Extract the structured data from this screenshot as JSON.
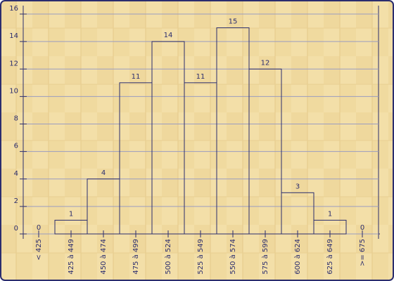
{
  "chart_data": {
    "type": "bar",
    "categories": [
      "< 425",
      "425 à 449",
      "450 à 474",
      "475 à 499",
      "500 à 524",
      "525 à 549",
      "550 à 574",
      "575 à 599",
      "600 à 624",
      "625 à 649",
      ">= 675"
    ],
    "values": [
      0,
      1,
      4,
      11,
      14,
      11,
      15,
      12,
      3,
      1,
      0
    ],
    "color": "#2b2d6e",
    "ylim": [
      0,
      16
    ],
    "yticks": [
      0,
      2,
      4,
      6,
      8,
      10,
      12,
      14,
      16
    ],
    "grid": true
  }
}
